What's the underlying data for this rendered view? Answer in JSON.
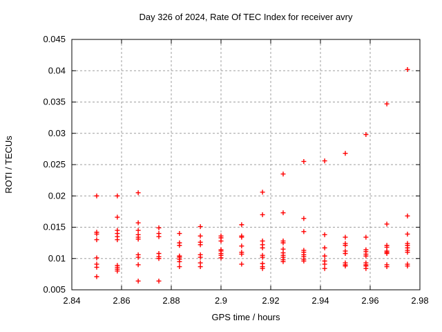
{
  "chart_data": {
    "type": "scatter",
    "title": "Day 326 of 2024, Rate Of TEC Index for receiver avry",
    "xlabel": "GPS time / hours",
    "ylabel": "ROTI / TECUs",
    "xlim": [
      2.84,
      2.98
    ],
    "ylim": [
      0.005,
      0.045
    ],
    "grid": true,
    "legend": "none",
    "marker": "plus",
    "marker_color": "#ff0000",
    "x_ticks": {
      "values": [
        2.84,
        2.86,
        2.88,
        2.9,
        2.92,
        2.94,
        2.96,
        2.98
      ],
      "labels": [
        "2.84",
        "2.86",
        "2.88",
        "2.9",
        "2.92",
        "2.94",
        "2.96",
        "2.98"
      ]
    },
    "y_ticks": {
      "values": [
        0.005,
        0.01,
        0.015,
        0.02,
        0.025,
        0.03,
        0.035,
        0.04,
        0.045
      ],
      "labels": [
        "0.005",
        "0.01",
        "0.015",
        "0.02",
        "0.025",
        "0.03",
        "0.035",
        "0.04",
        "0.045"
      ]
    },
    "series": [
      {
        "name": "ROTI",
        "points": [
          [
            2.85,
            0.02
          ],
          [
            2.85,
            0.0142
          ],
          [
            2.85,
            0.0139
          ],
          [
            2.85,
            0.013
          ],
          [
            2.85,
            0.0101
          ],
          [
            2.85,
            0.0091
          ],
          [
            2.85,
            0.0086
          ],
          [
            2.85,
            0.0071
          ],
          [
            2.8583,
            0.02
          ],
          [
            2.8583,
            0.0166
          ],
          [
            2.8583,
            0.0145
          ],
          [
            2.8583,
            0.014
          ],
          [
            2.8583,
            0.0135
          ],
          [
            2.8583,
            0.013
          ],
          [
            2.8583,
            0.0089
          ],
          [
            2.8583,
            0.0086
          ],
          [
            2.8583,
            0.0083
          ],
          [
            2.8583,
            0.008
          ],
          [
            2.8667,
            0.0205
          ],
          [
            2.8667,
            0.0157
          ],
          [
            2.8667,
            0.0145
          ],
          [
            2.8667,
            0.0138
          ],
          [
            2.8667,
            0.0134
          ],
          [
            2.8667,
            0.0131
          ],
          [
            2.8667,
            0.0106
          ],
          [
            2.8667,
            0.0102
          ],
          [
            2.8667,
            0.009
          ],
          [
            2.8667,
            0.0064
          ],
          [
            2.875,
            0.0149
          ],
          [
            2.875,
            0.014
          ],
          [
            2.875,
            0.0135
          ],
          [
            2.875,
            0.0108
          ],
          [
            2.875,
            0.0103
          ],
          [
            2.875,
            0.01
          ],
          [
            2.875,
            0.0064
          ],
          [
            2.8833,
            0.014
          ],
          [
            2.8833,
            0.0125
          ],
          [
            2.8833,
            0.0121
          ],
          [
            2.8833,
            0.0104
          ],
          [
            2.8833,
            0.0102
          ],
          [
            2.8833,
            0.0099
          ],
          [
            2.8833,
            0.0095
          ],
          [
            2.8833,
            0.0087
          ],
          [
            2.8917,
            0.0151
          ],
          [
            2.8917,
            0.0136
          ],
          [
            2.8917,
            0.0126
          ],
          [
            2.8917,
            0.0122
          ],
          [
            2.8917,
            0.0106
          ],
          [
            2.8917,
            0.0102
          ],
          [
            2.8917,
            0.0093
          ],
          [
            2.8917,
            0.0087
          ],
          [
            2.9,
            0.0136
          ],
          [
            2.9,
            0.0133
          ],
          [
            2.9,
            0.0128
          ],
          [
            2.9,
            0.0114
          ],
          [
            2.9,
            0.0112
          ],
          [
            2.9,
            0.0108
          ],
          [
            2.9,
            0.0105
          ],
          [
            2.9,
            0.0101
          ],
          [
            2.9083,
            0.0154
          ],
          [
            2.9083,
            0.0136
          ],
          [
            2.9083,
            0.0134
          ],
          [
            2.9083,
            0.012
          ],
          [
            2.9083,
            0.011
          ],
          [
            2.9083,
            0.0107
          ],
          [
            2.9083,
            0.0091
          ],
          [
            2.9167,
            0.0206
          ],
          [
            2.9167,
            0.017
          ],
          [
            2.9167,
            0.0128
          ],
          [
            2.9167,
            0.0122
          ],
          [
            2.9167,
            0.0117
          ],
          [
            2.9167,
            0.0105
          ],
          [
            2.9167,
            0.0102
          ],
          [
            2.9167,
            0.0092
          ],
          [
            2.9167,
            0.0087
          ],
          [
            2.9167,
            0.0084
          ],
          [
            2.925,
            0.0235
          ],
          [
            2.925,
            0.0173
          ],
          [
            2.925,
            0.0128
          ],
          [
            2.925,
            0.0125
          ],
          [
            2.925,
            0.0115
          ],
          [
            2.925,
            0.0109
          ],
          [
            2.925,
            0.0105
          ],
          [
            2.925,
            0.0102
          ],
          [
            2.925,
            0.0098
          ],
          [
            2.925,
            0.0095
          ],
          [
            2.9333,
            0.0255
          ],
          [
            2.9333,
            0.0164
          ],
          [
            2.9333,
            0.0143
          ],
          [
            2.9333,
            0.0113
          ],
          [
            2.9333,
            0.011
          ],
          [
            2.9333,
            0.0106
          ],
          [
            2.9333,
            0.0103
          ],
          [
            2.9333,
            0.0099
          ],
          [
            2.9333,
            0.0096
          ],
          [
            2.9417,
            0.0256
          ],
          [
            2.9417,
            0.0138
          ],
          [
            2.9417,
            0.0117
          ],
          [
            2.9417,
            0.0104
          ],
          [
            2.9417,
            0.0096
          ],
          [
            2.9417,
            0.0091
          ],
          [
            2.9417,
            0.0084
          ],
          [
            2.95,
            0.0268
          ],
          [
            2.95,
            0.0134
          ],
          [
            2.95,
            0.0124
          ],
          [
            2.95,
            0.0121
          ],
          [
            2.95,
            0.0112
          ],
          [
            2.95,
            0.0108
          ],
          [
            2.95,
            0.0093
          ],
          [
            2.95,
            0.009
          ],
          [
            2.95,
            0.0088
          ],
          [
            2.9583,
            0.0298
          ],
          [
            2.9583,
            0.0134
          ],
          [
            2.9583,
            0.0114
          ],
          [
            2.9583,
            0.0111
          ],
          [
            2.9583,
            0.0107
          ],
          [
            2.9583,
            0.0104
          ],
          [
            2.9583,
            0.0093
          ],
          [
            2.9583,
            0.009
          ],
          [
            2.9583,
            0.0088
          ],
          [
            2.9583,
            0.0084
          ],
          [
            2.9667,
            0.0347
          ],
          [
            2.9667,
            0.0155
          ],
          [
            2.9667,
            0.0121
          ],
          [
            2.9667,
            0.0118
          ],
          [
            2.9667,
            0.0112
          ],
          [
            2.9667,
            0.011
          ],
          [
            2.9667,
            0.0108
          ],
          [
            2.9667,
            0.009
          ],
          [
            2.9667,
            0.0087
          ],
          [
            2.975,
            0.0402
          ],
          [
            2.975,
            0.0168
          ],
          [
            2.975,
            0.0139
          ],
          [
            2.975,
            0.0124
          ],
          [
            2.975,
            0.0121
          ],
          [
            2.975,
            0.0117
          ],
          [
            2.975,
            0.0113
          ],
          [
            2.975,
            0.011
          ],
          [
            2.975,
            0.0091
          ],
          [
            2.975,
            0.0088
          ]
        ]
      }
    ]
  }
}
